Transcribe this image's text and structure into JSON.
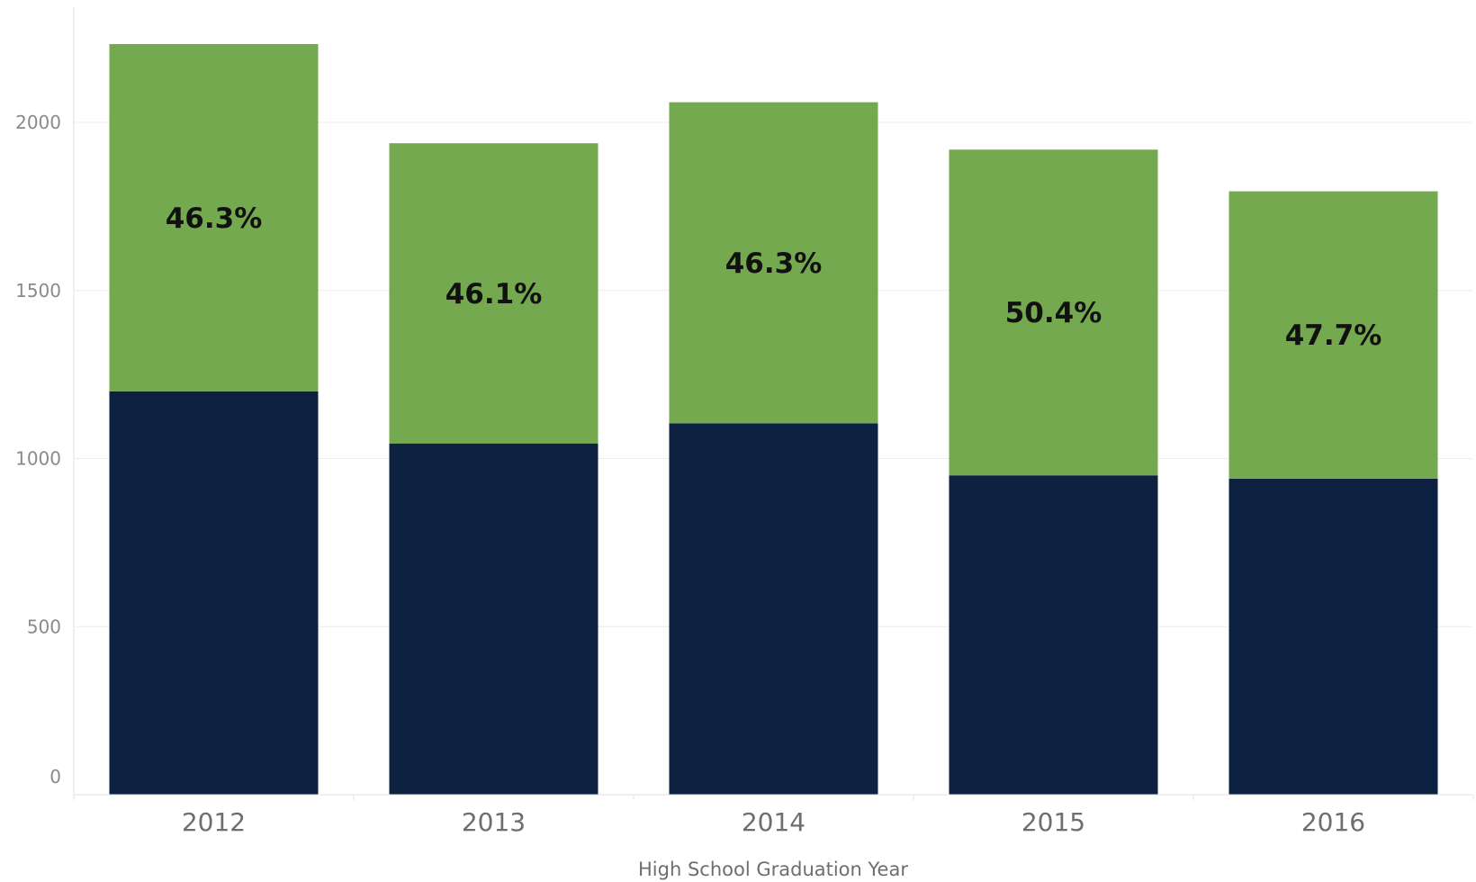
{
  "chart_data": {
    "type": "bar",
    "stacked": true,
    "title": "",
    "xlabel": "High School Graduation Year",
    "ylabel": "",
    "ylim": [
      0,
      2300
    ],
    "yticks": [
      0,
      500,
      1000,
      1500,
      2000
    ],
    "grid": "horizontal",
    "categories": [
      "2012",
      "2013",
      "2014",
      "2015",
      "2016"
    ],
    "series": [
      {
        "color": "#0d2240",
        "values": [
          1200,
          1045,
          1105,
          950,
          940
        ]
      },
      {
        "color": "#74a94f",
        "values": [
          1033,
          893,
          955,
          969,
          855
        ]
      }
    ],
    "data_labels": [
      "46.3%",
      "46.1%",
      "46.3%",
      "50.4%",
      "47.7%"
    ]
  }
}
